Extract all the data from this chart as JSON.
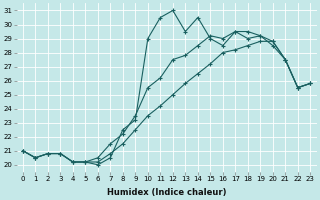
{
  "xlabel": "Humidex (Indice chaleur)",
  "bg_color": "#c5e8e8",
  "line_color": "#1a6060",
  "grid_color": "#ffffff",
  "xlim": [
    -0.5,
    23.5
  ],
  "ylim": [
    19.5,
    31.5
  ],
  "xticks": [
    0,
    1,
    2,
    3,
    4,
    5,
    6,
    7,
    8,
    9,
    10,
    11,
    12,
    13,
    14,
    15,
    16,
    17,
    18,
    19,
    20,
    21,
    22,
    23
  ],
  "yticks": [
    20,
    21,
    22,
    23,
    24,
    25,
    26,
    27,
    28,
    29,
    30,
    31
  ],
  "series1_x": [
    0,
    1,
    2,
    3,
    4,
    5,
    6,
    7,
    8,
    9,
    10,
    11,
    12,
    13,
    14,
    15,
    16,
    17,
    18,
    19,
    20,
    21,
    22,
    23
  ],
  "series1_y": [
    21.0,
    20.5,
    20.8,
    20.8,
    20.2,
    20.2,
    20.0,
    20.5,
    22.5,
    23.2,
    29.0,
    30.5,
    31.0,
    29.5,
    30.5,
    29.0,
    28.5,
    29.5,
    29.5,
    29.2,
    28.5,
    27.5,
    25.5,
    25.8
  ],
  "series2_x": [
    0,
    1,
    2,
    3,
    4,
    5,
    6,
    7,
    8,
    9,
    10,
    11,
    12,
    13,
    14,
    15,
    16,
    17,
    18,
    19,
    20,
    21,
    22,
    23
  ],
  "series2_y": [
    21.0,
    20.5,
    20.8,
    20.8,
    20.2,
    20.2,
    20.5,
    21.5,
    22.2,
    23.5,
    25.5,
    26.2,
    27.5,
    27.8,
    28.5,
    29.2,
    29.0,
    29.5,
    29.0,
    29.2,
    28.8,
    27.5,
    25.5,
    25.8
  ],
  "series3_x": [
    0,
    1,
    2,
    3,
    4,
    5,
    6,
    7,
    8,
    9,
    10,
    11,
    12,
    13,
    14,
    15,
    16,
    17,
    18,
    19,
    20,
    21,
    22,
    23
  ],
  "series3_y": [
    21.0,
    20.5,
    20.8,
    20.8,
    20.2,
    20.2,
    20.2,
    20.8,
    21.5,
    22.5,
    23.5,
    24.2,
    25.0,
    25.8,
    26.5,
    27.2,
    28.0,
    28.2,
    28.5,
    28.8,
    28.8,
    27.5,
    25.5,
    25.8
  ],
  "xlabel_fontsize": 6,
  "tick_fontsize": 5
}
